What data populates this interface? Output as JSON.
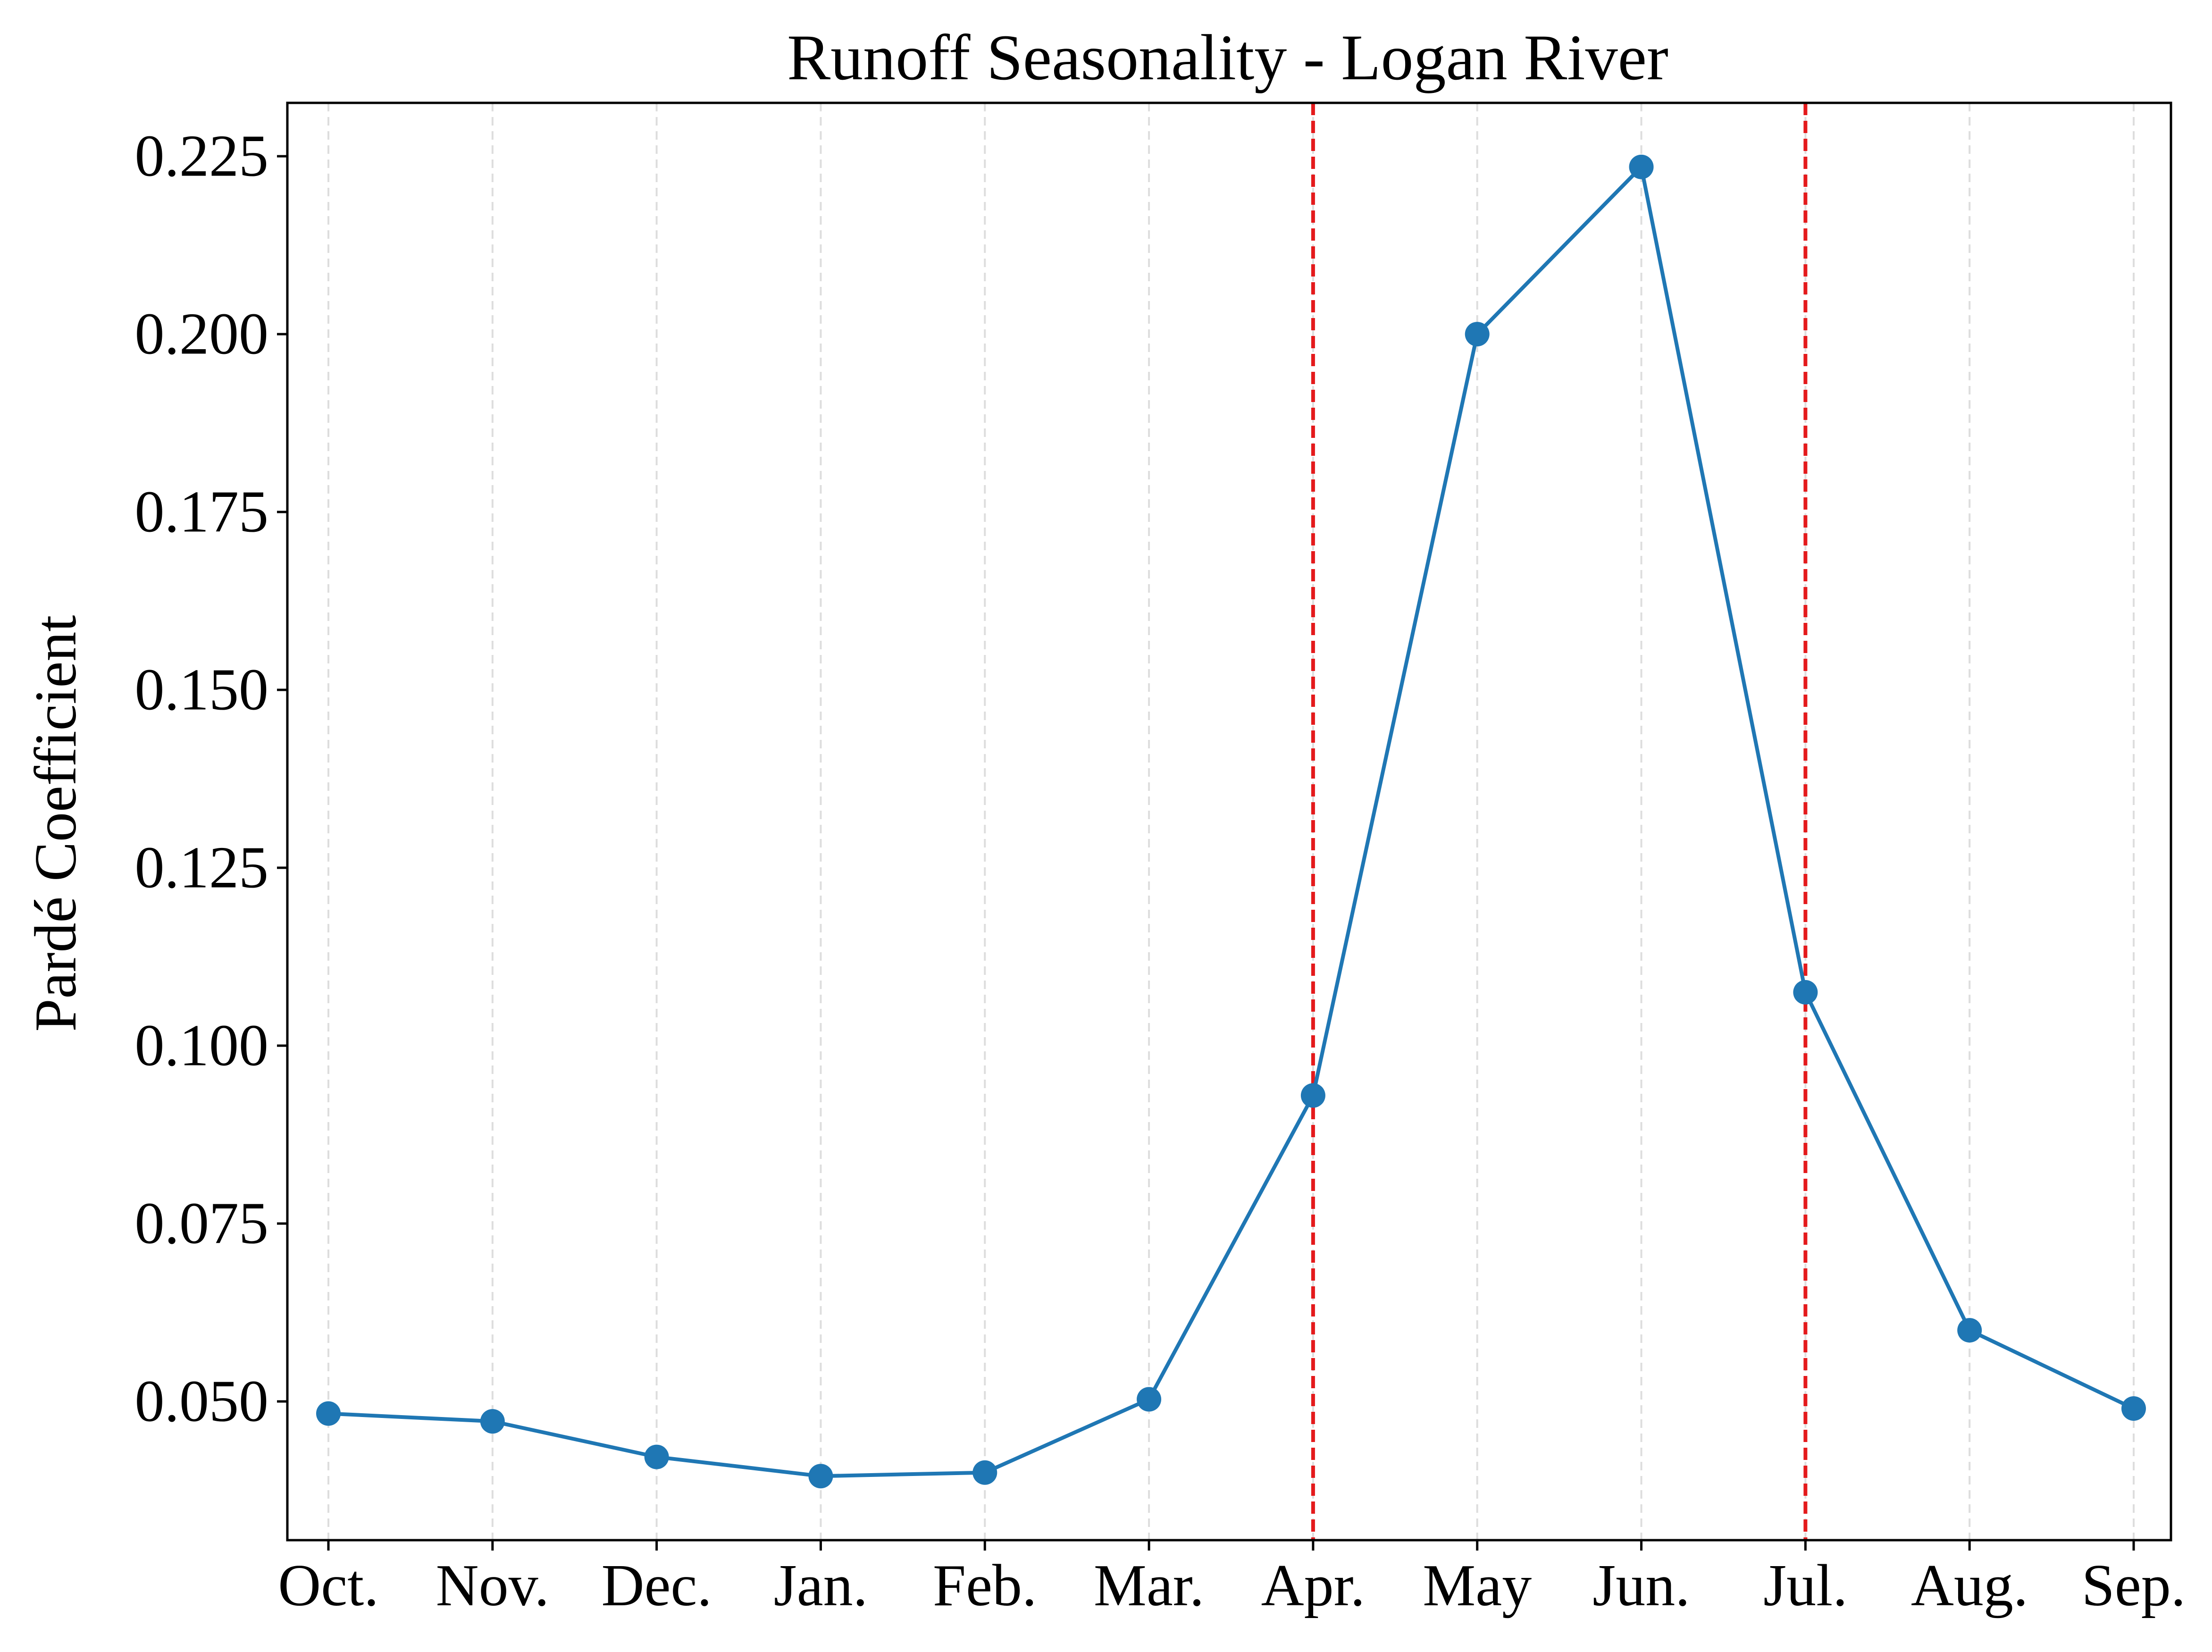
{
  "chart_data": {
    "type": "line",
    "title": "Runoff Seasonality - Logan River",
    "xlabel": "",
    "ylabel": "Pardé Coefficient",
    "categories": [
      "Oct.",
      "Nov.",
      "Dec.",
      "Jan.",
      "Feb.",
      "Mar.",
      "Apr.",
      "May",
      "Jun.",
      "Jul.",
      "Aug.",
      "Sep."
    ],
    "series": [
      {
        "values": [
          0.0483,
          0.0472,
          0.0422,
          0.0395,
          0.04,
          0.0503,
          0.093,
          0.2,
          0.2235,
          0.1075,
          0.06,
          0.049
        ],
        "color": "#1f77b4"
      }
    ],
    "ylim": [
      0.0305,
      0.2325
    ],
    "yticks": [
      0.05,
      0.075,
      0.1,
      0.125,
      0.15,
      0.175,
      0.2,
      0.225
    ],
    "ytick_labels": [
      "0.050",
      "0.075",
      "0.100",
      "0.125",
      "0.150",
      "0.175",
      "0.200",
      "0.225"
    ],
    "vertical_markers": [
      {
        "category": "Apr.",
        "color": "#e41a1c",
        "style": "dashed"
      },
      {
        "category": "Jul.",
        "color": "#e41a1c",
        "style": "dashed"
      }
    ],
    "grid": {
      "x": true,
      "y": false,
      "style": "dashed",
      "color": "#dddddd"
    },
    "legend": "none"
  }
}
